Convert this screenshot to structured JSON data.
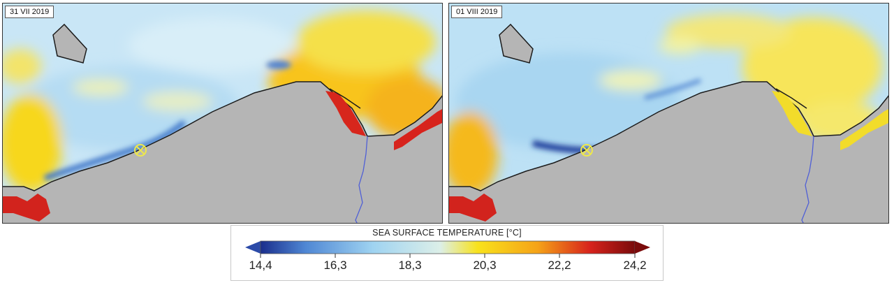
{
  "panels": [
    {
      "id": "left",
      "date_label": "31 VII 2019"
    },
    {
      "id": "right",
      "date_label": "01 VIII 2019"
    }
  ],
  "colorbar": {
    "title": "SEA SURFACE TEMPERATURE [°C]",
    "ticks": [
      "14,4",
      "16,3",
      "18,3",
      "20,3",
      "22,2",
      "24,2"
    ],
    "min": 14.4,
    "max": 24.2,
    "colors": {
      "low": "#1a2e8c",
      "cool": "#4f87d4",
      "light": "#9fd3f1",
      "neutral": "#dcefe8",
      "warm": "#f8e21c",
      "orange": "#f5a318",
      "hot": "#d7231c",
      "max": "#7a0b0b",
      "land": "#b5b5b5",
      "river": "#4f5fd6",
      "marker": "#ede84c"
    }
  }
}
